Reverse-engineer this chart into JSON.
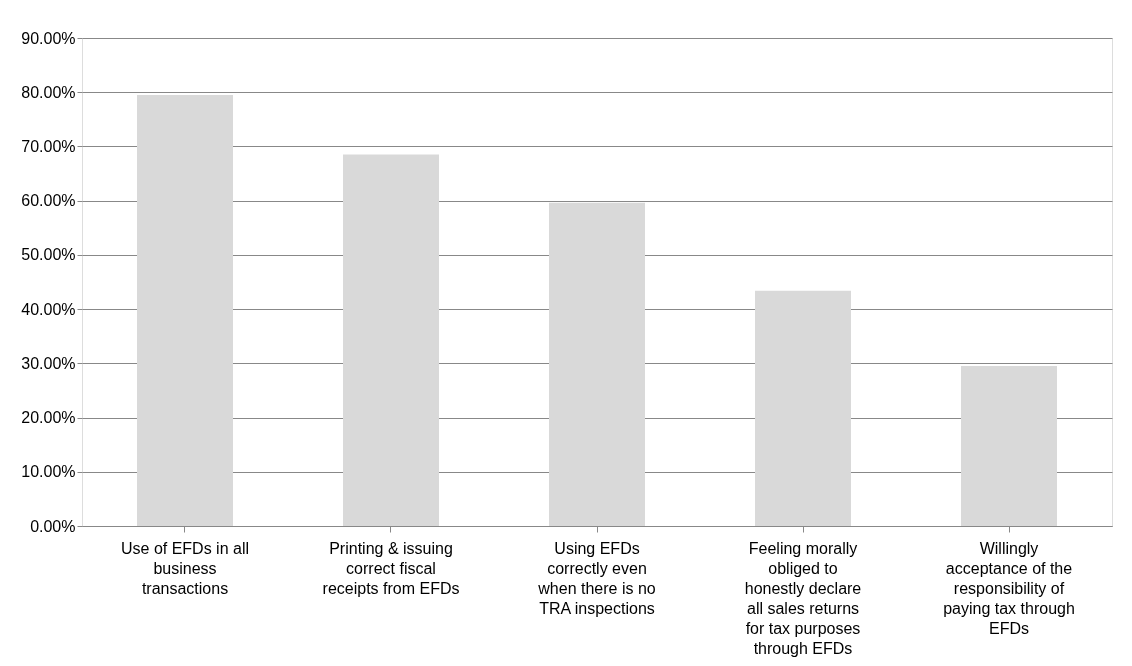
{
  "chart_data": {
    "type": "bar",
    "categories": [
      "Use of EFDs in all business transactions",
      "Printing & issuing correct fiscal receipts from EFDs",
      "Using EFDs correctly even when there is no TRA inspections",
      "Feeling morally obliged to honestly declare all sales returns for tax purposes through EFDs",
      "Willingly acceptance of the responsibility of paying tax through EFDs"
    ],
    "values": [
      79.5,
      68.5,
      59.6,
      43.4,
      29.5
    ],
    "color": "#d9d9d9",
    "ylim": [
      0,
      90
    ],
    "yticks": [
      {
        "value": 0,
        "label": "0.00%"
      },
      {
        "value": 10,
        "label": "10.00%"
      },
      {
        "value": 20,
        "label": "20.00%"
      },
      {
        "value": 30,
        "label": "30.00%"
      },
      {
        "value": 40,
        "label": "40.00%"
      },
      {
        "value": 50,
        "label": "50.00%"
      },
      {
        "value": 60,
        "label": "60.00%"
      },
      {
        "value": 70,
        "label": "70.00%"
      },
      {
        "value": 80,
        "label": "80.00%"
      },
      {
        "value": 90,
        "label": "90.00%"
      }
    ],
    "grid": "y"
  }
}
